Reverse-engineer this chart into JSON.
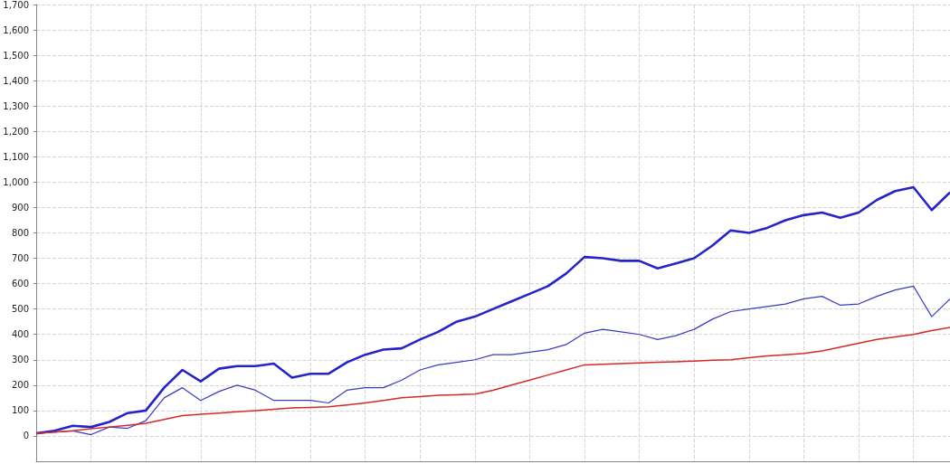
{
  "chart_data": {
    "type": "line",
    "categories": [
      null,
      null,
      null,
      null,
      null,
      null,
      null,
      null,
      null,
      null,
      null,
      null,
      null,
      null,
      null,
      null,
      null,
      null,
      null,
      null,
      null,
      null,
      null,
      null,
      null,
      null,
      null,
      null,
      null,
      null,
      null,
      null,
      null,
      null,
      null,
      null,
      null,
      null,
      null,
      null,
      null,
      null,
      null,
      null,
      null,
      null,
      null,
      null,
      null,
      null,
      null
    ],
    "ylim": [
      -100,
      1700
    ],
    "yticks": [
      0,
      100,
      200,
      300,
      400,
      500,
      600,
      700,
      800,
      900,
      {
        "value": 1000,
        "label": "1,000"
      },
      {
        "value": 1100,
        "label": "1,100"
      },
      {
        "value": 1200,
        "label": "1,200"
      },
      {
        "value": 1300,
        "label": "1,300"
      },
      {
        "value": 1400,
        "label": "1,400"
      },
      {
        "value": 1500,
        "label": "1,500"
      },
      {
        "value": 1600,
        "label": "1,600"
      },
      {
        "value": 1700,
        "label": "1,700"
      }
    ],
    "grid": true,
    "marker": "none",
    "line_style": "solid",
    "tick_labels": "y",
    "series": [
      {
        "color": "#2424c8",
        "values": [
          10,
          20,
          40,
          35,
          55,
          90,
          100,
          190,
          260,
          215,
          265,
          275,
          275,
          285,
          230,
          245,
          245,
          290,
          320,
          340,
          345,
          380,
          410,
          450,
          470,
          500,
          530,
          560,
          590,
          640,
          705,
          700,
          690,
          690,
          660,
          680,
          700,
          750,
          810,
          800,
          820,
          850,
          870,
          880,
          860,
          880,
          930,
          965,
          980,
          890,
          960
        ]
      },
      {
        "color": "#3a3ac0",
        "values": [
          10,
          15,
          20,
          5,
          35,
          30,
          60,
          150,
          190,
          140,
          175,
          200,
          180,
          140,
          140,
          140,
          130,
          180,
          190,
          190,
          220,
          260,
          280,
          290,
          300,
          320,
          320,
          330,
          340,
          360,
          405,
          420,
          410,
          400,
          380,
          395,
          420,
          460,
          490,
          500,
          510,
          520,
          540,
          550,
          515,
          520,
          550,
          575,
          590,
          470,
          540
        ]
      },
      {
        "color": "#d42a2a",
        "values": [
          10,
          15,
          20,
          28,
          35,
          42,
          50,
          65,
          80,
          85,
          90,
          95,
          100,
          105,
          110,
          112,
          115,
          122,
          130,
          140,
          150,
          155,
          160,
          162,
          165,
          180,
          200,
          220,
          240,
          260,
          280,
          282,
          285,
          288,
          290,
          292,
          295,
          298,
          300,
          308,
          315,
          320,
          325,
          335,
          350,
          365,
          380,
          390,
          400,
          415,
          428
        ]
      }
    ]
  }
}
